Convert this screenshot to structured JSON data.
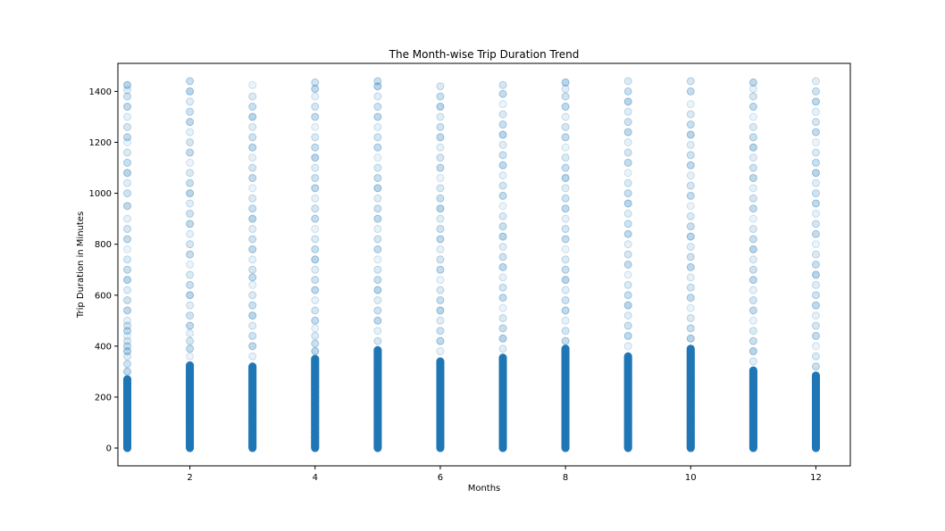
{
  "chart_data": {
    "type": "scatter",
    "title": "The Month-wise Trip Duration Trend",
    "xlabel": "Months",
    "ylabel": "Trip Duration in Minutes",
    "xlim": [
      0.85,
      12.55
    ],
    "ylim": [
      -70,
      1510
    ],
    "xticks": [
      2,
      4,
      6,
      8,
      10,
      12
    ],
    "yticks": [
      0,
      200,
      400,
      600,
      800,
      1000,
      1200,
      1400
    ],
    "grid": false,
    "legend": "none",
    "marker_color": "#1f77b4",
    "marker_alpha": 0.12,
    "series": [
      {
        "months": [
          1,
          2,
          3,
          4,
          5,
          6,
          7,
          8,
          9,
          10,
          11,
          12
        ],
        "dense_max": [
          270,
          325,
          320,
          350,
          385,
          340,
          355,
          390,
          360,
          390,
          305,
          285
        ],
        "max": [
          1425,
          1440,
          1425,
          1435,
          1440,
          1420,
          1425,
          1435,
          1440,
          1440,
          1435,
          1440
        ],
        "sample_durations": [
          [
            0,
            20,
            40,
            60,
            80,
            100,
            120,
            140,
            160,
            180,
            200,
            220,
            240,
            270,
            300,
            330,
            360,
            380,
            400,
            420,
            440,
            460,
            480,
            500,
            540,
            580,
            620,
            660,
            700,
            740,
            780,
            820,
            860,
            900,
            950,
            1000,
            1040,
            1080,
            1120,
            1160,
            1200,
            1220,
            1260,
            1300,
            1340,
            1380,
            1405,
            1425
          ],
          [
            0,
            20,
            40,
            60,
            80,
            100,
            120,
            140,
            160,
            180,
            200,
            220,
            240,
            260,
            280,
            300,
            325,
            360,
            390,
            420,
            450,
            480,
            520,
            560,
            600,
            640,
            680,
            720,
            760,
            800,
            840,
            880,
            920,
            960,
            1000,
            1040,
            1080,
            1120,
            1160,
            1200,
            1240,
            1280,
            1320,
            1360,
            1400,
            1440
          ],
          [
            0,
            20,
            40,
            60,
            80,
            100,
            120,
            140,
            160,
            180,
            200,
            220,
            240,
            260,
            280,
            300,
            320,
            360,
            400,
            440,
            480,
            520,
            560,
            600,
            640,
            670,
            700,
            740,
            780,
            820,
            860,
            900,
            940,
            980,
            1020,
            1060,
            1100,
            1140,
            1180,
            1220,
            1260,
            1300,
            1340,
            1380,
            1425
          ],
          [
            0,
            20,
            40,
            60,
            80,
            100,
            120,
            140,
            160,
            180,
            200,
            220,
            240,
            260,
            280,
            300,
            320,
            350,
            380,
            410,
            440,
            470,
            500,
            540,
            580,
            620,
            660,
            700,
            740,
            780,
            820,
            860,
            900,
            940,
            980,
            1020,
            1060,
            1100,
            1140,
            1180,
            1220,
            1260,
            1300,
            1340,
            1380,
            1410,
            1435
          ],
          [
            0,
            20,
            40,
            60,
            80,
            100,
            120,
            140,
            160,
            180,
            200,
            220,
            240,
            260,
            280,
            300,
            320,
            340,
            360,
            385,
            420,
            460,
            500,
            540,
            580,
            620,
            660,
            700,
            740,
            780,
            820,
            860,
            900,
            940,
            980,
            1020,
            1060,
            1100,
            1140,
            1180,
            1220,
            1260,
            1300,
            1340,
            1380,
            1420,
            1440
          ],
          [
            0,
            20,
            40,
            60,
            80,
            100,
            120,
            140,
            160,
            180,
            200,
            220,
            240,
            260,
            280,
            300,
            320,
            340,
            380,
            420,
            460,
            500,
            540,
            580,
            620,
            660,
            700,
            740,
            780,
            820,
            860,
            900,
            940,
            980,
            1020,
            1060,
            1100,
            1140,
            1180,
            1220,
            1260,
            1300,
            1340,
            1380,
            1420
          ],
          [
            0,
            20,
            40,
            60,
            80,
            100,
            120,
            140,
            160,
            180,
            200,
            220,
            240,
            260,
            280,
            300,
            320,
            355,
            390,
            430,
            470,
            510,
            550,
            590,
            630,
            670,
            710,
            750,
            790,
            830,
            870,
            910,
            950,
            990,
            1030,
            1070,
            1110,
            1150,
            1190,
            1230,
            1270,
            1310,
            1350,
            1390,
            1425
          ],
          [
            0,
            20,
            40,
            60,
            80,
            100,
            120,
            140,
            160,
            180,
            200,
            220,
            240,
            260,
            280,
            300,
            320,
            340,
            360,
            390,
            420,
            460,
            500,
            540,
            580,
            620,
            660,
            700,
            740,
            780,
            820,
            860,
            900,
            940,
            980,
            1020,
            1060,
            1100,
            1140,
            1180,
            1220,
            1260,
            1300,
            1340,
            1380,
            1410,
            1435
          ],
          [
            0,
            20,
            40,
            60,
            80,
            100,
            120,
            140,
            160,
            180,
            200,
            220,
            240,
            260,
            280,
            300,
            320,
            340,
            360,
            400,
            440,
            480,
            520,
            560,
            600,
            640,
            680,
            720,
            760,
            800,
            840,
            880,
            920,
            960,
            1000,
            1040,
            1080,
            1120,
            1160,
            1200,
            1240,
            1280,
            1320,
            1360,
            1400,
            1440
          ],
          [
            0,
            20,
            40,
            60,
            80,
            100,
            120,
            140,
            160,
            180,
            200,
            220,
            240,
            260,
            280,
            300,
            320,
            340,
            360,
            390,
            430,
            470,
            510,
            550,
            590,
            630,
            670,
            710,
            750,
            790,
            830,
            870,
            910,
            950,
            990,
            1030,
            1070,
            1110,
            1150,
            1190,
            1230,
            1270,
            1310,
            1350,
            1400,
            1440
          ],
          [
            0,
            20,
            40,
            60,
            80,
            100,
            120,
            140,
            160,
            180,
            200,
            220,
            240,
            260,
            280,
            305,
            340,
            380,
            420,
            460,
            500,
            540,
            580,
            620,
            660,
            700,
            740,
            780,
            820,
            860,
            900,
            940,
            980,
            1020,
            1060,
            1100,
            1140,
            1180,
            1220,
            1260,
            1300,
            1340,
            1380,
            1410,
            1435
          ],
          [
            0,
            20,
            40,
            60,
            80,
            100,
            120,
            140,
            160,
            180,
            200,
            220,
            240,
            260,
            285,
            320,
            360,
            400,
            440,
            480,
            520,
            560,
            600,
            640,
            680,
            720,
            760,
            800,
            840,
            880,
            920,
            960,
            1000,
            1040,
            1080,
            1120,
            1160,
            1200,
            1240,
            1280,
            1320,
            1360,
            1400,
            1440
          ]
        ]
      }
    ]
  }
}
